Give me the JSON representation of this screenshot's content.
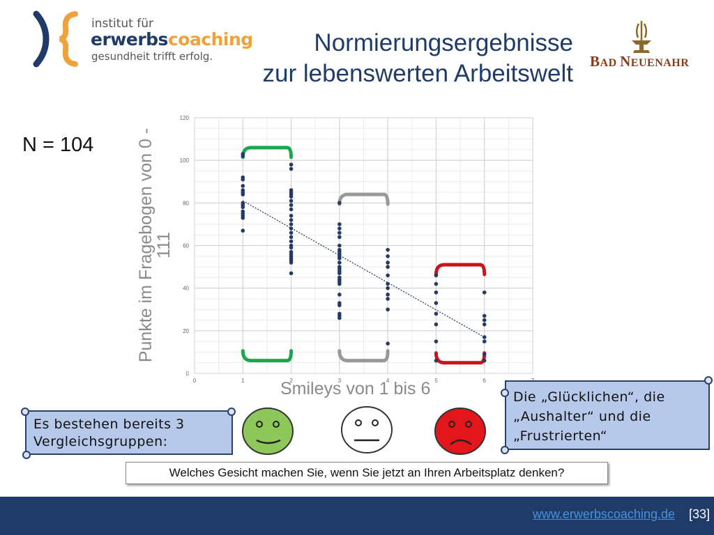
{
  "logo_left": {
    "line1": "institut für",
    "line2a": "erwerbs",
    "line2b": "coaching",
    "line3": "gesundheit trifft erfolg."
  },
  "logo_right": {
    "name_big1": "B",
    "name_small1": "AD ",
    "name_big2": "N",
    "name_small2": "EUENAHR"
  },
  "title": {
    "line1": "Normierungsergebnisse",
    "line2": "zur lebenswerten Arbeitswelt"
  },
  "n_label": "N = 104",
  "chart_data": {
    "type": "scatter",
    "xlabel": "Smileys von 1 bis 6",
    "ylabel": "Punkte im Fragebogen von 0 - 111",
    "xlim": [
      0,
      7
    ],
    "ylim": [
      0,
      120
    ],
    "xticks": [
      0,
      1,
      2,
      3,
      4,
      5,
      6,
      7
    ],
    "yticks": [
      0,
      20,
      40,
      60,
      80,
      100,
      120
    ],
    "grid": true,
    "series": [
      {
        "x": [
          1,
          1,
          1,
          1,
          1,
          1,
          1,
          1,
          1,
          1,
          1,
          1,
          1,
          1,
          1,
          1,
          2,
          2,
          2,
          2,
          2,
          2,
          2,
          2,
          2,
          2,
          2,
          2,
          2,
          2,
          2,
          2,
          2,
          2,
          2,
          2,
          2,
          2,
          2,
          2,
          2,
          3,
          3,
          3,
          3,
          3,
          3,
          3,
          3,
          3,
          3,
          3,
          3,
          3,
          3,
          3,
          3,
          3,
          3,
          3,
          3,
          3,
          3,
          3,
          3,
          3,
          3,
          4,
          4,
          4,
          4,
          4,
          4,
          4,
          4,
          4,
          4,
          4,
          5,
          5,
          5,
          5,
          5,
          5,
          5,
          5,
          6,
          6,
          6,
          6,
          6,
          6,
          6,
          6
        ],
        "y": [
          103,
          102,
          92,
          91,
          88,
          86,
          85,
          84,
          80,
          79,
          78,
          76,
          75,
          74,
          73,
          67,
          98,
          96,
          86,
          85,
          84,
          83,
          81,
          79,
          77,
          74,
          72,
          70,
          68,
          66,
          64,
          62,
          60,
          59,
          57,
          56,
          55,
          54,
          53,
          52,
          47,
          80,
          70,
          68,
          66,
          64,
          60,
          58,
          57,
          56,
          55,
          54,
          52,
          50,
          49,
          48,
          47,
          45,
          44,
          43,
          42,
          37,
          33,
          32,
          28,
          27,
          26,
          58,
          55,
          52,
          50,
          46,
          42,
          40,
          37,
          35,
          30,
          14,
          46,
          42,
          38,
          33,
          28,
          23,
          15,
          6,
          38,
          27,
          25,
          23,
          17,
          15,
          9,
          6
        ],
        "color": "#243b64"
      }
    ],
    "trendline": {
      "x": [
        1,
        6
      ],
      "y": [
        81,
        17
      ],
      "color": "#243b64"
    },
    "brackets": [
      {
        "group": "Glückliche",
        "x_from": 1,
        "x_to": 2,
        "y_low": 6,
        "y_high": 106,
        "color": "#1aa84a"
      },
      {
        "group": "Aushalter",
        "x_from": 3,
        "x_to": 4,
        "y_low": 6,
        "y_high": 84,
        "color": "#999999"
      },
      {
        "group": "Frustrierte",
        "x_from": 5,
        "x_to": 6,
        "y_low": 5,
        "y_high": 51,
        "color": "#c8141a"
      }
    ]
  },
  "callout_left": "Es bestehen bereits 3 Vergleichsgruppen:",
  "callout_right": {
    "line1": "Die „Glücklichen“, die",
    "line2": "„Aushalter“ und die",
    "line3": "„Frustrierten“"
  },
  "faces": [
    {
      "mood": "happy",
      "color": "#8fc85a"
    },
    {
      "mood": "neutral",
      "color": "#ffffff"
    },
    {
      "mood": "sad",
      "color": "#e3161c"
    }
  ],
  "question": "Welches Gesicht machen Sie, wenn Sie jetzt an Ihren Arbeitsplatz denken?",
  "footer": {
    "link": "www.erwerbscoaching.de",
    "page": "[33]"
  }
}
